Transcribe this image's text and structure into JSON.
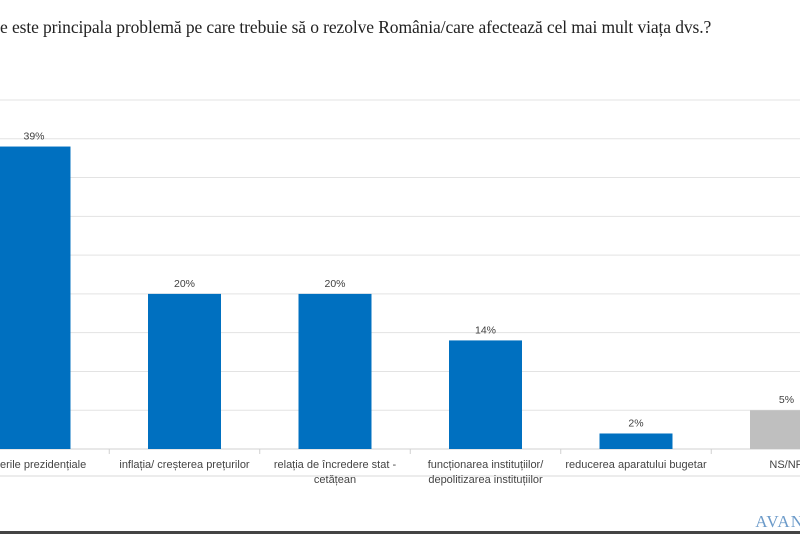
{
  "title": "e este principala problemă pe care trebuie să o rezolve România/care afectează cel mai mult viața dvs.?",
  "logo_text": "AVAN",
  "chart_data": {
    "type": "bar",
    "title": "e este principala problemă pe care trebuie să o rezolve România/care afectează cel mai mult viața dvs.?",
    "categories": [
      "erile  prezidențiale",
      "inflația/ creșterea prețurilor",
      "relația de încredere stat - cetățean",
      "funcționarea instituțiilor/ depolitizarea instituțiilor",
      "reducerea aparatului bugetar",
      "NS/NR"
    ],
    "values": [
      39,
      20,
      20,
      14,
      2,
      5
    ],
    "data_labels": [
      "39%",
      "20%",
      "20%",
      "14%",
      "2%",
      "5%"
    ],
    "colors": [
      "#0070c0",
      "#0070c0",
      "#0070c0",
      "#0070c0",
      "#0070c0",
      "#bfbfbf"
    ],
    "ylim": [
      0,
      45
    ],
    "grid": true,
    "xlabel": "",
    "ylabel": ""
  }
}
